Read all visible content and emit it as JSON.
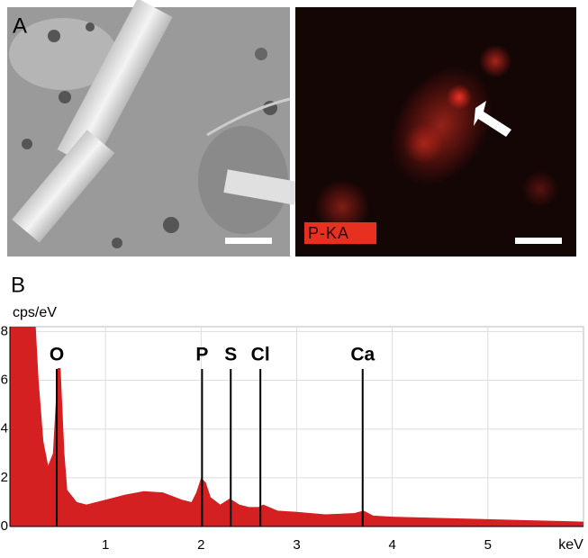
{
  "panel_a": {
    "label": "A",
    "map_label": "P-KA"
  },
  "chart_data": {
    "type": "area",
    "panel_label": "B",
    "ylabel": "cps/eV",
    "xlabel": "keV",
    "color": "#d42020",
    "x": [
      0,
      0.1,
      0.2,
      0.27,
      0.3,
      0.35,
      0.4,
      0.45,
      0.5,
      0.53,
      0.57,
      0.6,
      0.7,
      0.8,
      1.0,
      1.2,
      1.4,
      1.6,
      1.8,
      1.9,
      1.95,
      2.0,
      2.05,
      2.1,
      2.2,
      2.3,
      2.4,
      2.5,
      2.6,
      2.65,
      2.8,
      3.0,
      3.3,
      3.6,
      3.7,
      3.8,
      4.0,
      4.5,
      5.0,
      5.5,
      6.0
    ],
    "values": [
      8.2,
      8.2,
      8.2,
      8.2,
      6,
      3.5,
      2.5,
      3,
      6.5,
      6.5,
      3,
      1.5,
      1.0,
      0.9,
      1.1,
      1.3,
      1.45,
      1.4,
      1.1,
      1.0,
      1.4,
      2.0,
      1.8,
      1.2,
      0.9,
      1.15,
      0.9,
      0.8,
      0.8,
      0.9,
      0.65,
      0.6,
      0.5,
      0.55,
      0.65,
      0.45,
      0.4,
      0.35,
      0.3,
      0.25,
      0.2
    ],
    "xlim": [
      0,
      6
    ],
    "ylim": [
      0,
      8.2
    ],
    "xticks": [
      1,
      2,
      3,
      4,
      5
    ],
    "yticks": [
      0,
      2,
      4,
      6,
      8
    ],
    "grid": true,
    "annotations": [
      {
        "label": "O",
        "x": 0.49
      },
      {
        "label": "P",
        "x": 2.01
      },
      {
        "label": "S",
        "x": 2.31
      },
      {
        "label": "Cl",
        "x": 2.62
      },
      {
        "label": "Ca",
        "x": 3.69
      }
    ]
  }
}
